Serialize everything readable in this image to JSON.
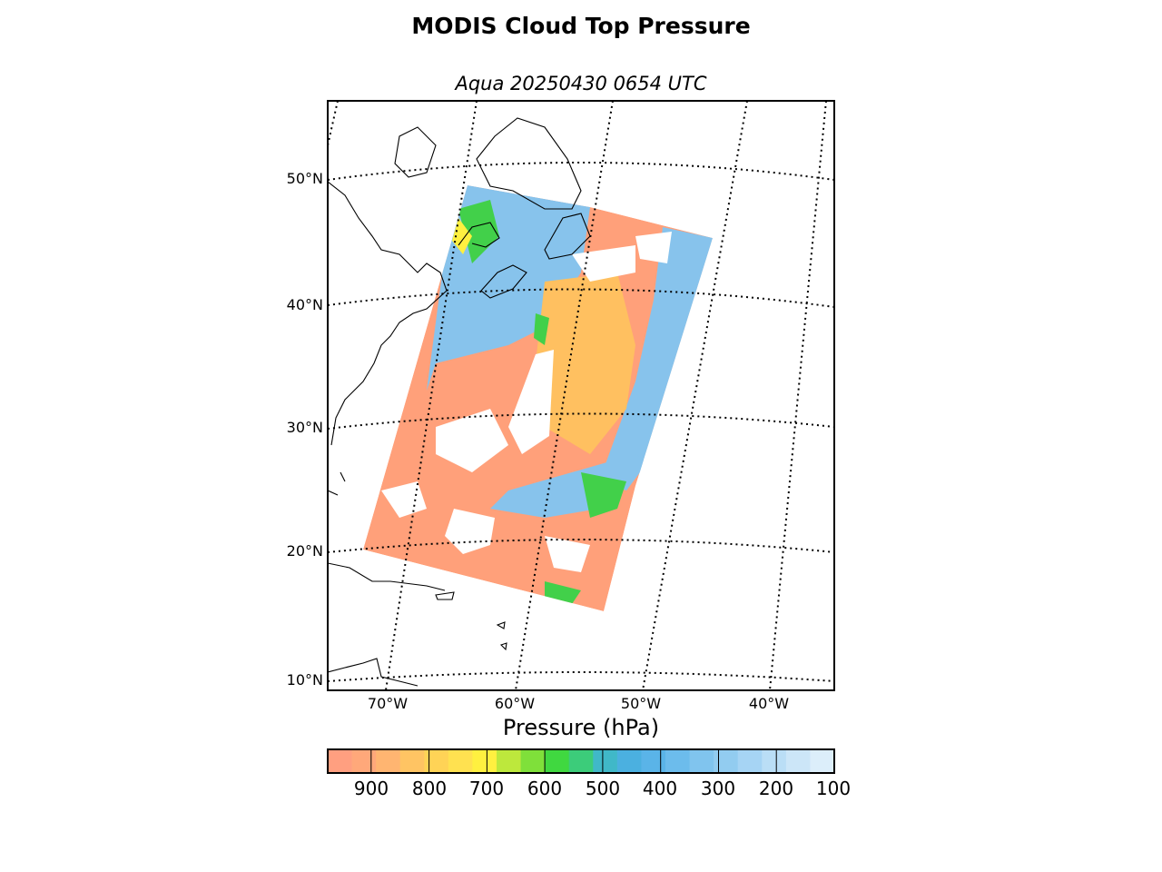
{
  "title": "MODIS Cloud Top Pressure",
  "subtitle": "Aqua 20250430 0654 UTC",
  "map": {
    "projection": "polar-conic",
    "extent_lon": [
      -75,
      -35
    ],
    "extent_lat": [
      9,
      56
    ],
    "lat_labels": [
      "10°N",
      "20°N",
      "30°N",
      "40°N",
      "50°N"
    ],
    "lon_labels": [
      "70°W",
      "60°W",
      "50°W",
      "40°W"
    ],
    "gridlines": "dotted"
  },
  "colorbar": {
    "title": "Pressure (hPa)",
    "ticks": [
      "900",
      "800",
      "700",
      "600",
      "500",
      "400",
      "300",
      "200",
      "100"
    ],
    "range": [
      975,
      100
    ],
    "colors": [
      "#ff9f80",
      "#ffa87a",
      "#ffb571",
      "#ffc463",
      "#ffd356",
      "#ffe150",
      "#fff040",
      "#bde83c",
      "#7fe03a",
      "#40d840",
      "#3ccc7a",
      "#40b8c8",
      "#4bb0e0",
      "#5ab4e8",
      "#6cbcec",
      "#80c4ee",
      "#92ccf0",
      "#a6d4f4",
      "#badef6",
      "#cce6f8",
      "#dceefa"
    ],
    "high_cloud_color": "#87c3ec",
    "mid_cloud_color": "#42d04a",
    "low_cloud_color": "#ffa07a"
  }
}
